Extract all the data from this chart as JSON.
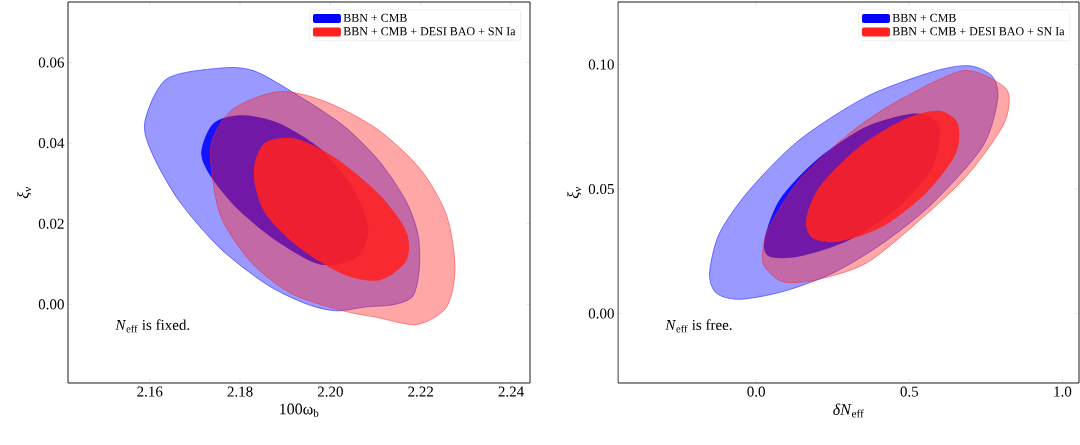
{
  "chart_data": [
    {
      "type": "area",
      "xlabel": "100ω$_{b}$",
      "ylabel": "*ξ*$_{ν}$",
      "legend": "top right",
      "xlim": [
        2.1419,
        2.2442
      ],
      "ylim": [
        -0.0195,
        0.075
      ],
      "xticks": [
        {
          "value": 2.16,
          "label": "2.16"
        },
        {
          "value": 2.18,
          "label": "2.18"
        },
        {
          "value": 2.2,
          "label": "2.20"
        },
        {
          "value": 2.22,
          "label": "2.22"
        },
        {
          "value": 2.24,
          "label": "2.24"
        }
      ],
      "yticks": [
        {
          "value": 0,
          "label": "0.00"
        },
        {
          "value": 0.02,
          "label": "0.02"
        },
        {
          "value": 0.04,
          "label": "0.04"
        },
        {
          "value": 0.06,
          "label": "0.06"
        }
      ],
      "annotations": [
        "*N*$_{eff}$ is fixed."
      ],
      "series": [
        {
          "color": "#0000ff",
          "x": [
            2.1589,
            2.1637,
            2.1755,
            2.1829,
            2.1917,
            2.2028,
            2.2109,
            2.2168,
            2.2194,
            2.2197,
            2.2183,
            2.2139,
            2.208,
            2.2013,
            2.1947,
            2.1858,
            2.1755,
            2.1666,
            2.1607
          ],
          "values": [
            0.0452,
            0.0559,
            0.0586,
            0.058,
            0.0526,
            0.0444,
            0.0354,
            0.0255,
            0.0173,
            0.0091,
            0.0021,
            -0.0001,
            -0.0006,
            -0.0016,
            0.0001,
            0.005,
            0.014,
            0.0255,
            0.037
          ]
        },
        {
          "name": "BBN + CMB",
          "color": "#0000ff",
          "x": [
            2.1714,
            2.174,
            2.1799,
            2.1881,
            2.1977,
            2.205,
            2.2084,
            2.2058,
            2.1977,
            2.1881,
            2.1792,
            2.1733
          ],
          "values": [
            0.0378,
            0.0448,
            0.0469,
            0.0452,
            0.0387,
            0.0288,
            0.019,
            0.0116,
            0.0099,
            0.0157,
            0.0239,
            0.0321
          ]
        },
        {
          "color": "#ff2020",
          "x": [
            2.1737,
            2.1785,
            2.1888,
            2.1991,
            2.2102,
            2.2198,
            2.2257,
            2.2276,
            2.2257,
            2.2191,
            2.2102,
            2.2028,
            2.1917,
            2.1829,
            2.1762,
            2.174
          ],
          "values": [
            0.0403,
            0.0485,
            0.0528,
            0.0502,
            0.0436,
            0.0337,
            0.0222,
            0.0091,
            -0.0007,
            -0.005,
            -0.0032,
            -0.0016,
            0.0025,
            0.0099,
            0.0206,
            0.0305
          ]
        },
        {
          "name": "BBN + CMB + DESI BAO + SN Ia",
          "color": "#ff2020",
          "x": [
            2.1833,
            2.1858,
            2.1925,
            2.2013,
            2.2109,
            2.2168,
            2.2168,
            2.2109,
            2.2028,
            2.1932,
            2.1858,
            2.1833
          ],
          "values": [
            0.0354,
            0.0403,
            0.0411,
            0.0362,
            0.0272,
            0.0181,
            0.0108,
            0.006,
            0.0075,
            0.014,
            0.0222,
            0.0296
          ]
        }
      ]
    },
    {
      "type": "area",
      "xlabel": "*δN*$_{eff}$",
      "ylabel": "*ξ*$_{ν}$",
      "legend": "top right",
      "xlim": [
        -0.451,
        1.054
      ],
      "ylim": [
        -0.0279,
        0.1251
      ],
      "xticks": [
        {
          "value": 0,
          "label": "0.0"
        },
        {
          "value": 0.5,
          "label": "0.5"
        },
        {
          "value": 1,
          "label": "1.0"
        }
      ],
      "yticks": [
        {
          "value": 0,
          "label": "0.00"
        },
        {
          "value": 0.05,
          "label": "0.05"
        },
        {
          "value": 0.1,
          "label": "0.10"
        }
      ],
      "annotations": [
        "*N*$_{eff}$ is free."
      ],
      "series": [
        {
          "color": "#0000ff",
          "x": [
            -0.152,
            -0.12,
            -0.022,
            0.141,
            0.359,
            0.576,
            0.696,
            0.772,
            0.788,
            0.739,
            0.576,
            0.413,
            0.25,
            0.087,
            -0.054,
            -0.13
          ],
          "values": [
            0.0162,
            0.0322,
            0.0496,
            0.0697,
            0.087,
            0.0971,
            0.0995,
            0.0951,
            0.0857,
            0.067,
            0.0443,
            0.0282,
            0.0162,
            0.0088,
            0.0057,
            0.0082
          ]
        },
        {
          "name": "BBN + CMB",
          "color": "#0000ff",
          "x": [
            0.027,
            0.076,
            0.196,
            0.359,
            0.522,
            0.598,
            0.576,
            0.467,
            0.304,
            0.141,
            0.043
          ],
          "values": [
            0.0295,
            0.0456,
            0.0616,
            0.075,
            0.0803,
            0.075,
            0.059,
            0.0429,
            0.0295,
            0.0229,
            0.0229
          ]
        },
        {
          "color": "#ff2020",
          "x": [
            0.022,
            0.043,
            0.141,
            0.304,
            0.467,
            0.674,
            0.793,
            0.826,
            0.804,
            0.685,
            0.522,
            0.359,
            0.196,
            0.087,
            0.027
          ],
          "values": [
            0.0255,
            0.0349,
            0.0536,
            0.0723,
            0.0857,
            0.0975,
            0.0925,
            0.087,
            0.075,
            0.0549,
            0.0362,
            0.0202,
            0.0135,
            0.0128,
            0.0189
          ]
        },
        {
          "name": "BBN + CMB + DESI BAO + SN Ia",
          "color": "#ff2020",
          "x": [
            0.163,
            0.207,
            0.337,
            0.489,
            0.598,
            0.658,
            0.652,
            0.554,
            0.413,
            0.272,
            0.185
          ],
          "values": [
            0.0376,
            0.0509,
            0.067,
            0.0783,
            0.0814,
            0.0763,
            0.0643,
            0.0483,
            0.0349,
            0.0289,
            0.0302
          ]
        }
      ]
    }
  ]
}
